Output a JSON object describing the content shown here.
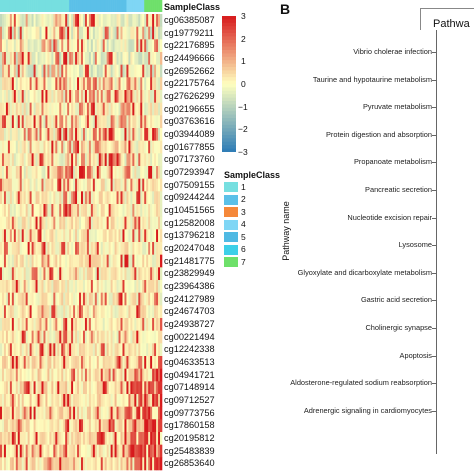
{
  "panel_b_letter": "B",
  "chart_data": [
    {
      "type": "heatmap",
      "annotation_track_label": "SampleClass",
      "row_labels": [
        "cg06385087",
        "cg19779211",
        "cg22176895",
        "cg24496666",
        "cg26952662",
        "cg22175764",
        "cg27626299",
        "cg02196655",
        "cg03763616",
        "cg03944089",
        "cg01677855",
        "cg07173760",
        "cg07293947",
        "cg07509155",
        "cg09244244",
        "cg10451565",
        "cg12582008",
        "cg13796218",
        "cg20247048",
        "cg21481775",
        "cg23829949",
        "cg23964386",
        "cg24127989",
        "cg24674703",
        "cg24938727",
        "cg00221494",
        "cg12242338",
        "cg04633513",
        "cg04941721",
        "cg07148914",
        "cg09712527",
        "cg09773756",
        "cg17860158",
        "cg20195812",
        "cg25483839",
        "cg26853640"
      ],
      "color_scale": {
        "title": "",
        "ticks": [
          3,
          2,
          1,
          0,
          -1,
          -2,
          -3
        ],
        "high_color": "#d7191c",
        "mid_color": "#ffffbf",
        "low_color": "#2c7bb6"
      },
      "sample_class_legend": {
        "title": "SampleClass",
        "classes": [
          {
            "label": "1",
            "color": "#76dfe0"
          },
          {
            "label": "2",
            "color": "#5bc0e8"
          },
          {
            "label": "3",
            "color": "#f5883a"
          },
          {
            "label": "4",
            "color": "#7fd6f5"
          },
          {
            "label": "5",
            "color": "#4fb9e3"
          },
          {
            "label": "6",
            "color": "#3dd0e8"
          },
          {
            "label": "7",
            "color": "#6ee06a"
          }
        ]
      }
    },
    {
      "type": "bar",
      "title": "Pathwa",
      "ylabel": "Pathway name",
      "categories": [
        "Vibrio cholerae infection",
        "Taurine and hypotaurine metabolism",
        "Pyruvate metabolism",
        "Protein digestion and absorption",
        "Propanoate metabolism",
        "Pancreatic secretion",
        "Nucleotide excision repair",
        "Lysosome",
        "Glyoxylate and dicarboxylate metabolism",
        "Gastric acid secretion",
        "Cholinergic synapse",
        "Apoptosis",
        "Aldosterone-regulated sodium reabsorption",
        "Adrenergic signaling in cardiomyocytes"
      ]
    }
  ]
}
